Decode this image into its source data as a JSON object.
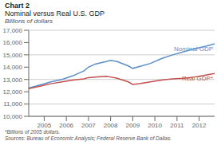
{
  "chart_data": {
    "type": "line",
    "title": "Chart 2",
    "subtitle": "Nominal versus Real U.S. GDP",
    "y_label": "Billions of dollars",
    "footnotes": [
      "*Billions of 2005 dollars.",
      "Sources: Bureau of Economic Analysis; Federal Reserve Bank of Dallas."
    ],
    "x": [
      2004.3,
      2004.8,
      2005.3,
      2005.8,
      2006.3,
      2006.8,
      2007.0,
      2007.3,
      2007.8,
      2008.0,
      2008.3,
      2008.8,
      2009.0,
      2009.3,
      2009.8,
      2010.3,
      2010.8,
      2011.3,
      2011.8,
      2012.3,
      2012.7
    ],
    "series": [
      {
        "name": "Nominal GDP",
        "color": "#5B8FC9",
        "values": [
          12300,
          12550,
          12800,
          13000,
          13300,
          13700,
          14000,
          14250,
          14450,
          14550,
          14450,
          14100,
          13900,
          14050,
          14300,
          14700,
          15000,
          15250,
          15500,
          15700,
          15900
        ]
      },
      {
        "name": "Real GDP*",
        "color": "#C0504D",
        "values": [
          12250,
          12450,
          12650,
          12800,
          12950,
          13050,
          13150,
          13200,
          13250,
          13200,
          13100,
          12800,
          12600,
          12650,
          12800,
          12950,
          13050,
          13100,
          13200,
          13350,
          13480
        ]
      }
    ],
    "xlim": [
      2004.3,
      2012.7
    ],
    "ylim": [
      10000,
      17000
    ],
    "xticks": [
      2005,
      2006,
      2007,
      2008,
      2009,
      2010,
      2011,
      2012
    ],
    "yticks": [
      {
        "value": 10000,
        "label": "10,000"
      },
      {
        "value": 11000,
        "label": "11,000"
      },
      {
        "value": 12000,
        "label": "12,000"
      },
      {
        "value": 13000,
        "label": "13,000"
      },
      {
        "value": 14000,
        "label": "14,000"
      },
      {
        "value": 15000,
        "label": "15,000"
      },
      {
        "value": 16000,
        "label": "16,000"
      },
      {
        "value": 17000,
        "label": "17,000"
      }
    ],
    "grid": true
  }
}
